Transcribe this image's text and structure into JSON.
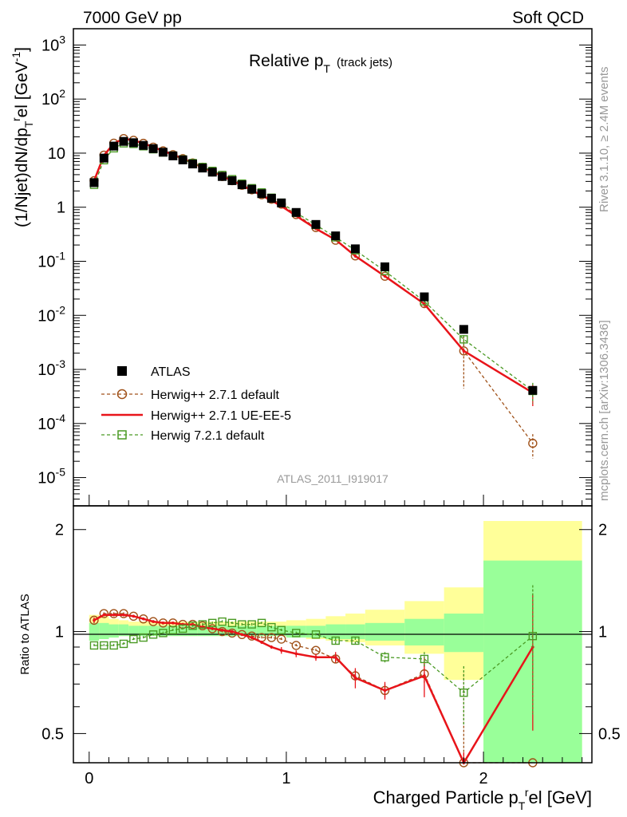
{
  "header": {
    "left_label": "7000 GeV pp",
    "right_label": "Soft QCD",
    "plot_title_main": "Relative p",
    "plot_title_sub": "T",
    "plot_title_extra": "(track jets)",
    "analysis_id": "ATLAS_2011_I919017",
    "side_text_top": "Rivet 3.1.10, ≥ 2.4M events",
    "side_text_bottom": "mcplots.cern.ch [arXiv:1306.3436]"
  },
  "axes": {
    "top_ylabel": "(1/Njet)dN/dp_T^rel [GeV^-1]",
    "top_ylabel_parts": [
      "(1/Njet)dN/dp",
      "T",
      "r",
      "el [GeV",
      "-1",
      "]"
    ],
    "bottom_ylabel": "Ratio to ATLAS",
    "xlabel_parts": [
      "Charged Particle p",
      "T",
      "r",
      "el [GeV]"
    ],
    "x_ticks": [
      "0",
      "1",
      "2"
    ],
    "top_y_ticks": [
      {
        "base": "10",
        "exp": "-5"
      },
      {
        "base": "10",
        "exp": "-4"
      },
      {
        "base": "10",
        "exp": "-3"
      },
      {
        "base": "10",
        "exp": "-2"
      },
      {
        "base": "10",
        "exp": "-1"
      },
      {
        "base": "1",
        "exp": ""
      },
      {
        "base": "10",
        "exp": ""
      },
      {
        "base": "10",
        "exp": "2"
      },
      {
        "base": "10",
        "exp": "3"
      }
    ],
    "ratio_ticks": [
      "0.5",
      "1",
      "2"
    ]
  },
  "legend": {
    "atlas": "ATLAS",
    "h271def": "Herwig++ 2.7.1 default",
    "h271ue": "Herwig++ 2.7.1 UE-EE-5",
    "h721": "Herwig 7.2.1 default"
  },
  "colors": {
    "atlas": "#000000",
    "h271def": "#a0521a",
    "h271ue": "#e8141a",
    "h721": "#4a9a24",
    "band_inner": "#99ff99",
    "band_outer": "#ffff99"
  },
  "chart_data": {
    "type": "line",
    "x_scale": "linear",
    "top_y_scale": "log",
    "bottom_y_scale": "log",
    "xlim": [
      -0.08,
      2.55
    ],
    "top_ylim": [
      3e-06,
      2000
    ],
    "bottom_ylim": [
      0.41,
      2.35
    ],
    "x": [
      0.025,
      0.075,
      0.125,
      0.175,
      0.225,
      0.275,
      0.325,
      0.375,
      0.425,
      0.475,
      0.525,
      0.575,
      0.625,
      0.675,
      0.725,
      0.775,
      0.825,
      0.875,
      0.925,
      0.975,
      1.05,
      1.15,
      1.25,
      1.35,
      1.5,
      1.7,
      1.9,
      2.25
    ],
    "bin_edges": [
      0,
      0.05,
      0.1,
      0.15,
      0.2,
      0.25,
      0.3,
      0.35,
      0.4,
      0.45,
      0.5,
      0.55,
      0.6,
      0.65,
      0.7,
      0.75,
      0.8,
      0.85,
      0.9,
      0.95,
      1.0,
      1.1,
      1.2,
      1.3,
      1.4,
      1.6,
      1.8,
      2.0,
      2.5
    ],
    "atlas": [
      2.85,
      8.1,
      13.5,
      16.5,
      15.6,
      13.9,
      12.1,
      10.4,
      8.9,
      7.5,
      6.3,
      5.3,
      4.45,
      3.7,
      3.1,
      2.6,
      2.15,
      1.78,
      1.46,
      1.2,
      0.8,
      0.48,
      0.295,
      0.17,
      0.079,
      0.022,
      0.0055,
      0.00041
    ],
    "band_inner": [
      1.06,
      1.06,
      1.05,
      1.05,
      1.04,
      1.04,
      1.04,
      1.04,
      1.04,
      1.04,
      1.04,
      1.04,
      1.04,
      1.04,
      1.04,
      1.04,
      1.04,
      1.04,
      1.04,
      1.04,
      1.04,
      1.04,
      1.05,
      1.05,
      1.06,
      1.09,
      1.13,
      1.62
    ],
    "band_outer": [
      1.12,
      1.11,
      1.09,
      1.08,
      1.07,
      1.07,
      1.07,
      1.07,
      1.07,
      1.07,
      1.07,
      1.07,
      1.07,
      1.07,
      1.07,
      1.07,
      1.07,
      1.07,
      1.07,
      1.07,
      1.08,
      1.09,
      1.11,
      1.13,
      1.16,
      1.23,
      1.35,
      2.12
    ],
    "band_low_outer": [
      0.94,
      0.95,
      0.96,
      0.97,
      0.97,
      0.97,
      0.97,
      0.97,
      0.97,
      0.97,
      0.97,
      0.97,
      0.97,
      0.97,
      0.97,
      0.97,
      0.97,
      0.97,
      0.97,
      0.97,
      0.96,
      0.95,
      0.94,
      0.93,
      0.91,
      0.86,
      0.72,
      0.4
    ],
    "series": [
      {
        "name": "Herwig++ 2.7.1 default",
        "ratio": [
          1.08,
          1.13,
          1.13,
          1.13,
          1.11,
          1.09,
          1.07,
          1.06,
          1.06,
          1.05,
          1.05,
          1.04,
          1.02,
          1.0,
          0.99,
          0.98,
          0.97,
          0.96,
          0.96,
          0.95,
          0.91,
          0.88,
          0.83,
          0.74,
          0.67,
          0.75,
          0.4,
          0.105
        ],
        "values": [
          3.1,
          9.2,
          15.3,
          18.6,
          17.3,
          15.2,
          12.9,
          11.0,
          9.4,
          7.9,
          6.6,
          5.5,
          4.5,
          3.7,
          3.1,
          2.55,
          2.1,
          1.7,
          1.4,
          1.14,
          0.73,
          0.42,
          0.245,
          0.126,
          0.053,
          0.0165,
          0.0022,
          4.3e-05
        ],
        "errors_ratio": [
          0.02,
          0.01,
          0.01,
          0.01,
          0.01,
          0.01,
          0.01,
          0.01,
          0.01,
          0.01,
          0.01,
          0.01,
          0.01,
          0.01,
          0.01,
          0.01,
          0.01,
          0.01,
          0.01,
          0.01,
          0.01,
          0.01,
          0.02,
          0.03,
          0.03,
          0.05,
          0.35,
          0.05
        ]
      },
      {
        "name": "Herwig++ 2.7.1 UE-EE-5",
        "ratio": [
          1.08,
          1.12,
          1.12,
          1.12,
          1.11,
          1.09,
          1.07,
          1.06,
          1.06,
          1.05,
          1.05,
          1.03,
          1.02,
          1.01,
          1.0,
          0.98,
          0.96,
          0.93,
          0.9,
          0.88,
          0.86,
          0.84,
          0.84,
          0.73,
          0.67,
          0.74,
          0.4,
          0.9
        ],
        "values": [
          3.1,
          9.1,
          15.1,
          18.5,
          17.3,
          15.2,
          12.9,
          11.0,
          9.4,
          7.9,
          6.6,
          5.45,
          4.55,
          3.75,
          3.1,
          2.55,
          2.05,
          1.65,
          1.32,
          1.05,
          0.69,
          0.4,
          0.25,
          0.125,
          0.053,
          0.0163,
          0.0022,
          0.00037
        ],
        "errors_ratio": [
          0.02,
          0.01,
          0.01,
          0.01,
          0.01,
          0.01,
          0.01,
          0.01,
          0.01,
          0.01,
          0.01,
          0.01,
          0.01,
          0.01,
          0.01,
          0.01,
          0.01,
          0.01,
          0.01,
          0.02,
          0.02,
          0.02,
          0.03,
          0.05,
          0.04,
          0.1,
          0.04,
          0.39
        ]
      },
      {
        "name": "Herwig 7.2.1 default",
        "ratio": [
          0.91,
          0.91,
          0.91,
          0.92,
          0.95,
          0.96,
          0.98,
          0.99,
          1.01,
          1.02,
          1.04,
          1.05,
          1.06,
          1.07,
          1.06,
          1.05,
          1.05,
          1.06,
          1.03,
          1.01,
          0.99,
          0.98,
          0.94,
          0.94,
          0.84,
          0.83,
          0.66,
          0.97
        ],
        "values": [
          2.6,
          7.4,
          12.3,
          15.2,
          14.8,
          13.4,
          11.8,
          10.3,
          9.0,
          7.65,
          6.55,
          5.55,
          4.7,
          3.95,
          3.3,
          2.73,
          2.25,
          1.88,
          1.5,
          1.21,
          0.79,
          0.47,
          0.277,
          0.16,
          0.066,
          0.0182,
          0.0036,
          0.0004
        ],
        "errors_ratio": [
          0.01,
          0.01,
          0.01,
          0.01,
          0.01,
          0.01,
          0.01,
          0.01,
          0.01,
          0.01,
          0.01,
          0.01,
          0.01,
          0.01,
          0.01,
          0.01,
          0.01,
          0.01,
          0.01,
          0.01,
          0.01,
          0.01,
          0.02,
          0.02,
          0.03,
          0.04,
          0.13,
          0.4
        ]
      }
    ]
  }
}
